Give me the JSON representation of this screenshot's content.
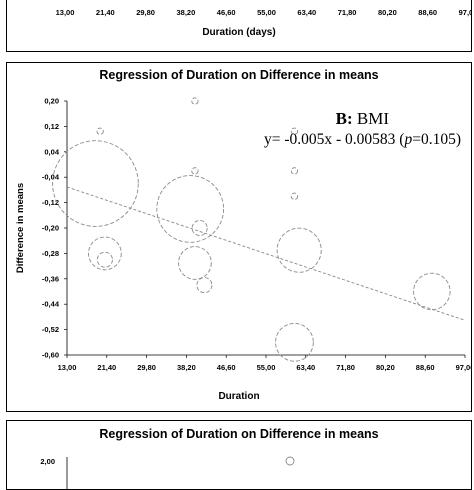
{
  "chart_data": [
    {
      "type": "bubble",
      "xlabel": "Duration (days)",
      "x_ticks": [
        "13,00",
        "21,40",
        "29,80",
        "38,20",
        "46,60",
        "55,00",
        "63,40",
        "71,80",
        "80,20",
        "88,60",
        "97,00"
      ]
    },
    {
      "type": "bubble",
      "title": "Regression of Duration on Difference in means",
      "xlabel": "Duration",
      "ylabel": "Difference in means",
      "xlim": [
        13.0,
        97.0
      ],
      "ylim": [
        -0.6,
        0.2
      ],
      "x_ticks": [
        "13,00",
        "21,40",
        "29,80",
        "38,20",
        "46,60",
        "55,00",
        "63,40",
        "71,80",
        "80,20",
        "88,60",
        "97,00"
      ],
      "y_ticks": [
        "0,20",
        "0,12",
        "0,04",
        "-0,04",
        "-0,12",
        "-0,20",
        "-0,28",
        "-0,36",
        "-0,44",
        "-0,52",
        "-0,60"
      ],
      "annotation": {
        "panel_label": "B:",
        "panel_name": "BMI",
        "equation_prefix": "y= -0.005x - 0.00583 (",
        "p_symbol": "p",
        "equation_suffix": "=0.105)"
      },
      "regression": {
        "slope": -0.005,
        "intercept": -0.00583
      },
      "points": [
        {
          "x": 20.0,
          "y": 0.105,
          "size": 0.5
        },
        {
          "x": 40.0,
          "y": 0.2,
          "size": 0.5
        },
        {
          "x": 40.0,
          "y": -0.02,
          "size": 0.5
        },
        {
          "x": 61.0,
          "y": -0.02,
          "size": 0.5
        },
        {
          "x": 61.0,
          "y": -0.1,
          "size": 0.5
        },
        {
          "x": 61.0,
          "y": 0.105,
          "size": 0.5
        },
        {
          "x": 19.0,
          "y": -0.06,
          "size": 6.8
        },
        {
          "x": 39.0,
          "y": -0.14,
          "size": 5.3
        },
        {
          "x": 21.0,
          "y": -0.28,
          "size": 2.6
        },
        {
          "x": 21.0,
          "y": -0.3,
          "size": 1.2
        },
        {
          "x": 41.0,
          "y": -0.2,
          "size": 1.2
        },
        {
          "x": 40.0,
          "y": -0.31,
          "size": 2.6
        },
        {
          "x": 42.0,
          "y": -0.38,
          "size": 1.2
        },
        {
          "x": 62.0,
          "y": -0.27,
          "size": 3.5
        },
        {
          "x": 61.0,
          "y": -0.56,
          "size": 3.0
        },
        {
          "x": 90.0,
          "y": -0.4,
          "size": 2.9
        }
      ]
    },
    {
      "type": "bubble",
      "title": "Regression of Duration on Difference in means",
      "y_ticks": [
        "2,00"
      ]
    }
  ]
}
